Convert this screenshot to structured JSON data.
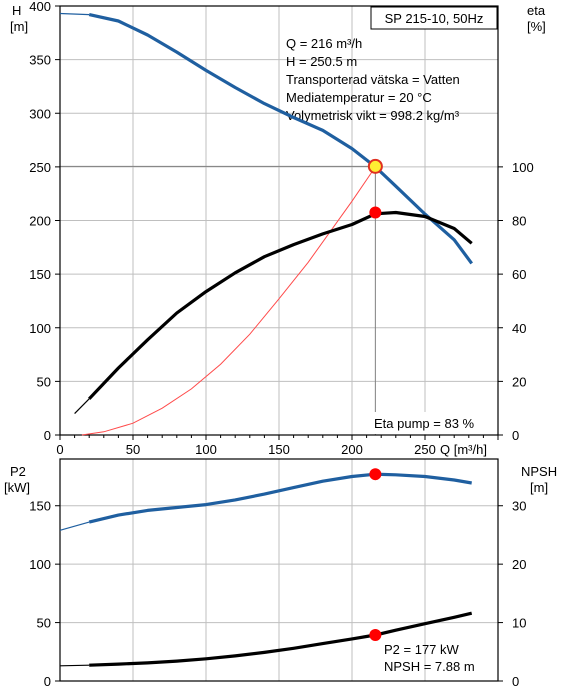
{
  "chart_data": [
    {
      "type": "line",
      "title": "SP 215-10, 50Hz",
      "x_axis": {
        "label": "Q [m³/h]",
        "range": [
          0,
          300
        ],
        "ticks": [
          0,
          50,
          100,
          150,
          200,
          250
        ]
      },
      "y_axis_left": {
        "label_line1": "H",
        "label_line2": "[m]",
        "range": [
          0,
          400
        ],
        "ticks": [
          0,
          50,
          100,
          150,
          200,
          250,
          300,
          350,
          400
        ]
      },
      "y_axis_right": {
        "label_line1": "eta",
        "label_line2": "[%]",
        "range": [
          0,
          160
        ],
        "ticks": [
          0,
          20,
          40,
          60,
          80,
          100
        ]
      },
      "grid": true,
      "series": [
        {
          "axis": "left",
          "color": "#1f5fa0",
          "x": [
            0,
            20,
            40,
            60,
            80,
            100,
            120,
            140,
            160,
            180,
            200,
            216,
            230,
            250,
            270,
            282
          ],
          "y": [
            393,
            392,
            386,
            373,
            357,
            340,
            324,
            309,
            296,
            284,
            267,
            250,
            232,
            206,
            182,
            160
          ]
        },
        {
          "axis": "right",
          "color": "#000000",
          "x": [
            10,
            20,
            40,
            60,
            80,
            100,
            120,
            140,
            160,
            180,
            200,
            216,
            230,
            250,
            270,
            282
          ],
          "y": [
            8,
            13.5,
            25,
            35.5,
            45.5,
            53.5,
            60.5,
            66.5,
            71,
            75,
            78.5,
            82.5,
            83,
            81.5,
            77,
            71.5
          ]
        },
        {
          "axis": "left",
          "color": "#ff4a4a",
          "x": [
            15,
            30,
            50,
            70,
            90,
            110,
            130,
            150,
            170,
            190,
            200,
            216
          ],
          "y": [
            0,
            3,
            11,
            25,
            43,
            66,
            94,
            127,
            161,
            199,
            218,
            250
          ]
        }
      ],
      "operating_point": {
        "q": 216,
        "h": 250.5
      },
      "efficiency_point": {
        "q": 216,
        "eta": 83
      },
      "info_lines": [
        "Q = 216 m³/h",
        "H = 250.5 m",
        "Transporterad vätska = Vatten",
        "Mediatemperatur = 20 °C",
        "Volymetrisk vikt = 998.2 kg/m³"
      ],
      "annotation": "Eta pump = 83 %"
    },
    {
      "type": "line",
      "y_axis_left": {
        "label_line1": "P2",
        "label_line2": "[kW]",
        "range": [
          0,
          190
        ],
        "ticks": [
          0,
          50,
          100,
          150
        ]
      },
      "y_axis_right": {
        "label_line1": "NPSH",
        "label_line2": "[m]",
        "range": [
          0,
          38
        ],
        "ticks": [
          0,
          10,
          20,
          30
        ]
      },
      "x_axis": {
        "range": [
          0,
          300
        ]
      },
      "grid": true,
      "series": [
        {
          "axis": "left",
          "color": "#1f5fa0",
          "x": [
            0,
            20,
            40,
            60,
            80,
            100,
            120,
            140,
            160,
            180,
            200,
            216,
            230,
            250,
            270,
            282
          ],
          "y": [
            129,
            136,
            142,
            146,
            148.5,
            151,
            155,
            160,
            165.5,
            171,
            175,
            177,
            176.5,
            175,
            172,
            169.5
          ]
        },
        {
          "axis": "right",
          "color": "#000000",
          "x": [
            0,
            20,
            40,
            60,
            80,
            100,
            120,
            140,
            160,
            180,
            200,
            216,
            230,
            250,
            270,
            282
          ],
          "y": [
            2.6,
            2.7,
            2.9,
            3.1,
            3.4,
            3.8,
            4.3,
            4.9,
            5.6,
            6.4,
            7.2,
            7.88,
            8.7,
            9.8,
            10.9,
            11.6
          ]
        }
      ],
      "points": [
        {
          "axis": "left",
          "q": 216,
          "value": 177
        },
        {
          "axis": "right",
          "q": 216,
          "value": 7.88
        }
      ],
      "info_lines": [
        "P2 = 177 kW",
        "NPSH = 7.88 m"
      ]
    }
  ]
}
